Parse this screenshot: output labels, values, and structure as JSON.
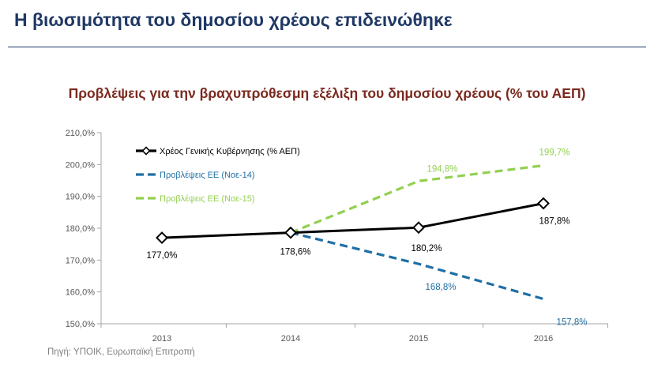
{
  "slide": {
    "title": "Η βιωσιμότητα του δημοσίου χρέους επιδεινώθηκε",
    "source": "Πηγή: ΥΠΟΙΚ, Ευρωπαϊκή Επιτροπή"
  },
  "chart_data": {
    "type": "line",
    "title": "Προβλέψεις για την βραχυπρόθεσμη εξέλιξη του δημοσίου χρέους (% του ΑΕΠ)",
    "xlabel": "",
    "ylabel": "",
    "categories": [
      "2013",
      "2014",
      "2015",
      "2016"
    ],
    "ylim": [
      150,
      210
    ],
    "yticks": [
      150,
      160,
      170,
      180,
      190,
      200,
      210
    ],
    "ytick_labels": [
      "150,0%",
      "160,0%",
      "170,0%",
      "180,0%",
      "190,0%",
      "200,0%",
      "210,0%"
    ],
    "grid": false,
    "legend_position": "top-left",
    "series": [
      {
        "name": "Χρέος Γενικής Κυβέρνησης (% ΑΕΠ)",
        "color": "#000000",
        "dash": "solid",
        "marker": "diamond",
        "values": [
          177.0,
          178.6,
          180.2,
          187.8
        ],
        "labels": [
          "177,0%",
          "178,6%",
          "180,2%",
          "187,8%"
        ]
      },
      {
        "name": "Προβλέψεις ΕΕ (Νοε-14)",
        "color": "#1f6fa5",
        "dash": "dashed",
        "marker": "none",
        "values": [
          null,
          178.6,
          168.8,
          157.8
        ],
        "labels": [
          null,
          null,
          "168,8%",
          "157,8%"
        ]
      },
      {
        "name": "Προβλέψεις ΕΕ (Νοε-15)",
        "color": "#92d050",
        "dash": "dashed",
        "marker": "none",
        "values": [
          null,
          178.6,
          194.8,
          199.7
        ],
        "labels": [
          null,
          null,
          "194,8%",
          "199,7%"
        ]
      }
    ]
  }
}
